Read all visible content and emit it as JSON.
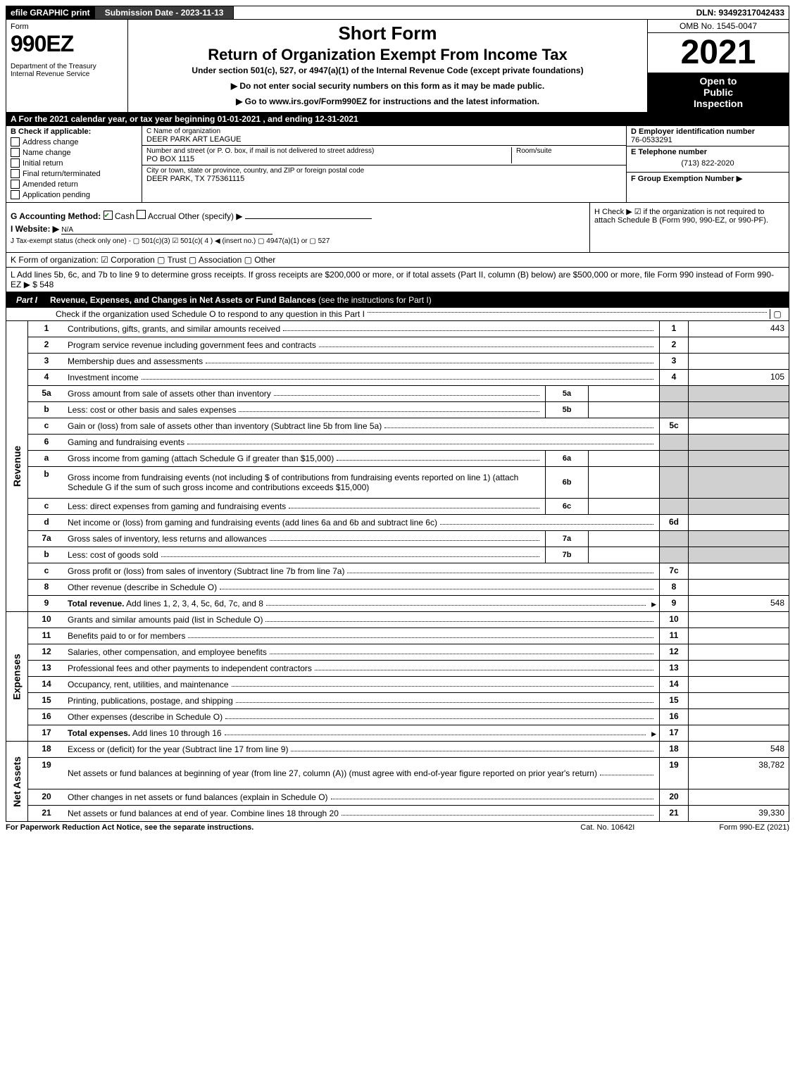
{
  "top_bar": {
    "efile": "efile GRAPHIC print",
    "submission_date": "Submission Date - 2023-11-13",
    "dln": "DLN: 93492317042433"
  },
  "header": {
    "form_label": "Form",
    "form_number": "990EZ",
    "dept1": "Department of the Treasury",
    "dept2": "Internal Revenue Service",
    "short_form": "Short Form",
    "title": "Return of Organization Exempt From Income Tax",
    "under_section": "Under section 501(c), 527, or 4947(a)(1) of the Internal Revenue Code (except private foundations)",
    "instr1": "▶ Do not enter social security numbers on this form as it may be made public.",
    "instr2": "▶ Go to www.irs.gov/Form990EZ for instructions and the latest information.",
    "omb": "OMB No. 1545-0047",
    "year": "2021",
    "open1": "Open to",
    "open2": "Public",
    "open3": "Inspection"
  },
  "row_A": "A  For the 2021 calendar year, or tax year beginning 01-01-2021 , and ending 12-31-2021",
  "section_B": {
    "label": "B  Check if applicable:",
    "items": [
      {
        "label": "Address change",
        "checked": false
      },
      {
        "label": "Name change",
        "checked": false
      },
      {
        "label": "Initial return",
        "checked": false
      },
      {
        "label": "Final return/terminated",
        "checked": false
      },
      {
        "label": "Amended return",
        "checked": false
      },
      {
        "label": "Application pending",
        "checked": false
      }
    ]
  },
  "section_C": {
    "name_label": "C Name of organization",
    "name": "DEER PARK ART LEAGUE",
    "street_label": "Number and street (or P. O. box, if mail is not delivered to street address)",
    "street": "PO BOX 1115",
    "room_label": "Room/suite",
    "city_label": "City or town, state or province, country, and ZIP or foreign postal code",
    "city": "DEER PARK, TX  775361115"
  },
  "section_DEF": {
    "D_label": "D Employer identification number",
    "D_value": "76-0533291",
    "E_label": "E Telephone number",
    "E_value": "(713) 822-2020",
    "F_label": "F Group Exemption Number  ▶"
  },
  "section_G": {
    "label": "G Accounting Method:",
    "cash": "Cash",
    "accrual": "Accrual",
    "other": "Other (specify) ▶"
  },
  "section_H": "H  Check ▶  ☑  if the organization is not required to attach Schedule B (Form 990, 990-EZ, or 990-PF).",
  "section_I": {
    "label": "I Website: ▶",
    "value": "N/A"
  },
  "section_J": "J Tax-exempt status (check only one) -  ▢ 501(c)(3)  ☑ 501(c)( 4 ) ◀ (insert no.)  ▢ 4947(a)(1) or  ▢ 527",
  "row_K": "K Form of organization:  ☑ Corporation  ▢ Trust  ▢ Association  ▢ Other",
  "row_L": {
    "text": "L Add lines 5b, 6c, and 7b to line 9 to determine gross receipts. If gross receipts are $200,000 or more, or if total assets (Part II, column (B) below) are $500,000 or more, file Form 990 instead of Form 990-EZ",
    "amount": "▶ $ 548"
  },
  "part1": {
    "label": "Part I",
    "title": "Revenue, Expenses, and Changes in Net Assets or Fund Balances",
    "subtitle": "(see the instructions for Part I)",
    "schedule_o": "Check if the organization used Schedule O to respond to any question in this Part I",
    "schedule_o_box": "▢"
  },
  "revenue_rows": [
    {
      "num": "1",
      "desc": "Contributions, gifts, grants, and similar amounts received",
      "rn": "1",
      "val": "443"
    },
    {
      "num": "2",
      "desc": "Program service revenue including government fees and contracts",
      "rn": "2",
      "val": ""
    },
    {
      "num": "3",
      "desc": "Membership dues and assessments",
      "rn": "3",
      "val": ""
    },
    {
      "num": "4",
      "desc": "Investment income",
      "rn": "4",
      "val": "105"
    },
    {
      "num": "5a",
      "desc": "Gross amount from sale of assets other than inventory",
      "sub": "5a",
      "subval": "",
      "shaded_right": true
    },
    {
      "num": "b",
      "desc": "Less: cost or other basis and sales expenses",
      "sub": "5b",
      "subval": "",
      "shaded_right": true
    },
    {
      "num": "c",
      "desc": "Gain or (loss) from sale of assets other than inventory (Subtract line 5b from line 5a)",
      "rn": "5c",
      "val": ""
    },
    {
      "num": "6",
      "desc": "Gaming and fundraising events",
      "shaded_right": true,
      "shaded_num": true
    },
    {
      "num": "a",
      "desc": "Gross income from gaming (attach Schedule G if greater than $15,000)",
      "sub": "6a",
      "subval": "",
      "shaded_right": true
    },
    {
      "num": "b",
      "desc": "Gross income from fundraising events (not including $                     of contributions from fundraising events reported on line 1) (attach Schedule G if the sum of such gross income and contributions exceeds $15,000)",
      "sub": "6b",
      "subval": "",
      "shaded_right": true,
      "tall": true
    },
    {
      "num": "c",
      "desc": "Less: direct expenses from gaming and fundraising events",
      "sub": "6c",
      "subval": "",
      "shaded_right": true
    },
    {
      "num": "d",
      "desc": "Net income or (loss) from gaming and fundraising events (add lines 6a and 6b and subtract line 6c)",
      "rn": "6d",
      "val": ""
    },
    {
      "num": "7a",
      "desc": "Gross sales of inventory, less returns and allowances",
      "sub": "7a",
      "subval": "",
      "shaded_right": true
    },
    {
      "num": "b",
      "desc": "Less: cost of goods sold",
      "sub": "7b",
      "subval": "",
      "shaded_right": true
    },
    {
      "num": "c",
      "desc": "Gross profit or (loss) from sales of inventory (Subtract line 7b from line 7a)",
      "rn": "7c",
      "val": ""
    },
    {
      "num": "8",
      "desc": "Other revenue (describe in Schedule O)",
      "rn": "8",
      "val": ""
    },
    {
      "num": "9",
      "desc": "Total revenue. Add lines 1, 2, 3, 4, 5c, 6d, 7c, and 8",
      "rn": "9",
      "val": "548",
      "bold": true,
      "arrow": true
    }
  ],
  "expense_rows": [
    {
      "num": "10",
      "desc": "Grants and similar amounts paid (list in Schedule O)",
      "rn": "10",
      "val": ""
    },
    {
      "num": "11",
      "desc": "Benefits paid to or for members",
      "rn": "11",
      "val": ""
    },
    {
      "num": "12",
      "desc": "Salaries, other compensation, and employee benefits",
      "rn": "12",
      "val": ""
    },
    {
      "num": "13",
      "desc": "Professional fees and other payments to independent contractors",
      "rn": "13",
      "val": ""
    },
    {
      "num": "14",
      "desc": "Occupancy, rent, utilities, and maintenance",
      "rn": "14",
      "val": ""
    },
    {
      "num": "15",
      "desc": "Printing, publications, postage, and shipping",
      "rn": "15",
      "val": ""
    },
    {
      "num": "16",
      "desc": "Other expenses (describe in Schedule O)",
      "rn": "16",
      "val": ""
    },
    {
      "num": "17",
      "desc": "Total expenses. Add lines 10 through 16",
      "rn": "17",
      "val": "",
      "bold": true,
      "arrow": true
    }
  ],
  "netassets_rows": [
    {
      "num": "18",
      "desc": "Excess or (deficit) for the year (Subtract line 17 from line 9)",
      "rn": "18",
      "val": "548"
    },
    {
      "num": "19",
      "desc": "Net assets or fund balances at beginning of year (from line 27, column (A)) (must agree with end-of-year figure reported on prior year's return)",
      "rn": "19",
      "val": "38,782",
      "tall": true
    },
    {
      "num": "20",
      "desc": "Other changes in net assets or fund balances (explain in Schedule O)",
      "rn": "20",
      "val": ""
    },
    {
      "num": "21",
      "desc": "Net assets or fund balances at end of year. Combine lines 18 through 20",
      "rn": "21",
      "val": "39,330"
    }
  ],
  "side_labels": {
    "revenue": "Revenue",
    "expenses": "Expenses",
    "netassets": "Net Assets"
  },
  "footer": {
    "paperwork": "For Paperwork Reduction Act Notice, see the separate instructions.",
    "cat": "Cat. No. 10642I",
    "form": "Form 990-EZ (2021)"
  }
}
